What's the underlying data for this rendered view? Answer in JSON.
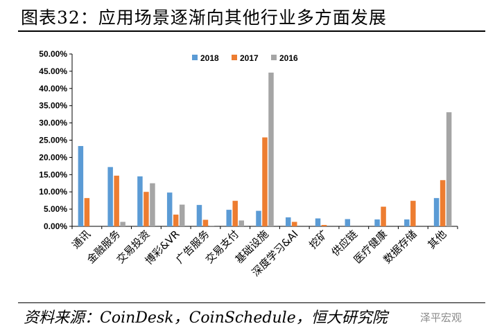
{
  "header": {
    "title": "图表32：应用场景逐渐向其他行业多方面发展"
  },
  "footer": {
    "source": "资料来源：CoinDesk，CoinSchedule，恒大研究院"
  },
  "watermark": {
    "text": "泽平宏观"
  },
  "chart_data": {
    "type": "bar",
    "title": "",
    "xlabel": "",
    "ylabel": "",
    "ylim": [
      0,
      50
    ],
    "y_ticks": [
      "0.00%",
      "5.00%",
      "10.00%",
      "15.00%",
      "20.00%",
      "25.00%",
      "30.00%",
      "35.00%",
      "40.00%",
      "45.00%",
      "50.00%"
    ],
    "legend_position": "top-center",
    "grid": false,
    "categories": [
      "通讯",
      "金融服务",
      "交易投资",
      "博彩&VR",
      "广告服务",
      "交易支付",
      "基础设施",
      "深度学习&AI",
      "挖矿",
      "供应链",
      "医疗健康",
      "数据存储",
      "其他"
    ],
    "series": [
      {
        "name": "2018",
        "color": "#5b9bd5",
        "values": [
          23.3,
          17.2,
          14.5,
          9.8,
          6.2,
          4.8,
          4.5,
          2.6,
          2.3,
          2.1,
          2.0,
          2.0,
          8.2
        ]
      },
      {
        "name": "2017",
        "color": "#ed7d31",
        "values": [
          8.2,
          14.7,
          10.0,
          3.4,
          1.9,
          7.4,
          25.8,
          1.3,
          0.4,
          0.0,
          5.7,
          7.4,
          13.4
        ]
      },
      {
        "name": "2016",
        "color": "#a5a5a5",
        "values": [
          0.0,
          1.3,
          12.5,
          6.3,
          0.2,
          1.7,
          44.6,
          0.0,
          0.0,
          0.0,
          0.0,
          0.0,
          33.1
        ]
      }
    ]
  }
}
